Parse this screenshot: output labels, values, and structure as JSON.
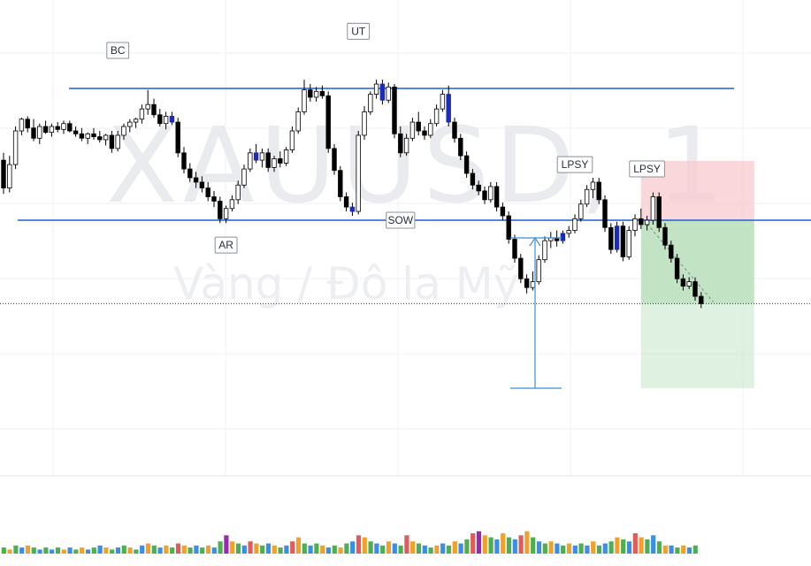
{
  "chart_data": {
    "type": "candlestick",
    "symbol": "XAUUSD, 1",
    "description": "Vàng / Đô la Mỹ",
    "grid": true,
    "colors": {
      "up_body": "#ffffff",
      "down_body": "#000000",
      "wick": "#000000",
      "highlight_body": "#1c2bb8",
      "horizontal_line": "#1e5fd6",
      "measure_line": "#3d8fd1",
      "stop_zone": "#f7c9cf",
      "target_zone": "#bfe3c2",
      "volume_colors": [
        "#e25a5a",
        "#f0a12b",
        "#4caf50",
        "#3a8ee6",
        "#9c27b0"
      ]
    },
    "price_levels": {
      "resistance": 2033.0,
      "support": 2024.0,
      "current": 2018.3
    },
    "candles": [
      {
        "o": 2028.1,
        "h": 2028.6,
        "l": 2025.8,
        "c": 2026.2
      },
      {
        "o": 2026.2,
        "h": 2028.4,
        "l": 2025.9,
        "c": 2027.8
      },
      {
        "o": 2027.8,
        "h": 2030.4,
        "l": 2027.5,
        "c": 2030.1
      },
      {
        "o": 2030.1,
        "h": 2031.0,
        "l": 2029.8,
        "c": 2030.9
      },
      {
        "o": 2030.9,
        "h": 2031.1,
        "l": 2030.0,
        "c": 2030.3
      },
      {
        "o": 2030.3,
        "h": 2030.9,
        "l": 2029.4,
        "c": 2029.6
      },
      {
        "o": 2029.6,
        "h": 2030.6,
        "l": 2029.2,
        "c": 2030.4
      },
      {
        "o": 2030.4,
        "h": 2030.8,
        "l": 2029.9,
        "c": 2030.0
      },
      {
        "o": 2030.0,
        "h": 2030.6,
        "l": 2029.7,
        "c": 2030.4
      },
      {
        "o": 2030.4,
        "h": 2030.7,
        "l": 2030.0,
        "c": 2030.2
      },
      {
        "o": 2030.2,
        "h": 2030.8,
        "l": 2029.9,
        "c": 2030.6
      },
      {
        "o": 2030.6,
        "h": 2030.8,
        "l": 2030.0,
        "c": 2030.1
      },
      {
        "o": 2030.1,
        "h": 2030.4,
        "l": 2029.7,
        "c": 2029.9
      },
      {
        "o": 2029.9,
        "h": 2030.3,
        "l": 2029.4,
        "c": 2029.6
      },
      {
        "o": 2029.6,
        "h": 2030.0,
        "l": 2029.2,
        "c": 2029.9
      },
      {
        "o": 2029.9,
        "h": 2030.3,
        "l": 2029.5,
        "c": 2029.7
      },
      {
        "o": 2029.7,
        "h": 2030.1,
        "l": 2029.3,
        "c": 2029.5
      },
      {
        "o": 2029.5,
        "h": 2029.9,
        "l": 2029.1,
        "c": 2029.8
      },
      {
        "o": 2029.8,
        "h": 2030.1,
        "l": 2028.6,
        "c": 2028.9
      },
      {
        "o": 2028.9,
        "h": 2030.1,
        "l": 2028.7,
        "c": 2029.8
      },
      {
        "o": 2029.8,
        "h": 2030.6,
        "l": 2029.5,
        "c": 2030.4
      },
      {
        "o": 2030.4,
        "h": 2030.9,
        "l": 2030.0,
        "c": 2030.7
      },
      {
        "o": 2030.7,
        "h": 2031.0,
        "l": 2030.3,
        "c": 2030.9
      },
      {
        "o": 2030.9,
        "h": 2031.9,
        "l": 2030.6,
        "c": 2031.6
      },
      {
        "o": 2031.6,
        "h": 2032.9,
        "l": 2031.2,
        "c": 2031.9
      },
      {
        "o": 2031.9,
        "h": 2032.3,
        "l": 2031.0,
        "c": 2031.2
      },
      {
        "o": 2031.2,
        "h": 2031.6,
        "l": 2030.4,
        "c": 2030.6
      },
      {
        "o": 2030.6,
        "h": 2031.4,
        "l": 2030.2,
        "c": 2031.1
      },
      {
        "o": 2031.1,
        "h": 2031.4,
        "l": 2030.5,
        "c": 2030.7,
        "hl": true
      },
      {
        "o": 2030.7,
        "h": 2031.0,
        "l": 2028.3,
        "c": 2028.6
      },
      {
        "o": 2028.6,
        "h": 2029.0,
        "l": 2027.2,
        "c": 2027.5
      },
      {
        "o": 2027.5,
        "h": 2027.9,
        "l": 2026.6,
        "c": 2026.9
      },
      {
        "o": 2026.9,
        "h": 2027.3,
        "l": 2026.2,
        "c": 2026.6
      },
      {
        "o": 2026.6,
        "h": 2027.0,
        "l": 2025.9,
        "c": 2026.2
      },
      {
        "o": 2026.2,
        "h": 2026.6,
        "l": 2025.3,
        "c": 2025.6
      },
      {
        "o": 2025.6,
        "h": 2026.0,
        "l": 2024.9,
        "c": 2025.3
      },
      {
        "o": 2025.3,
        "h": 2025.6,
        "l": 2023.8,
        "c": 2024.1
      },
      {
        "o": 2024.1,
        "h": 2025.0,
        "l": 2023.8,
        "c": 2024.8
      },
      {
        "o": 2024.8,
        "h": 2025.7,
        "l": 2024.6,
        "c": 2025.4
      },
      {
        "o": 2025.4,
        "h": 2026.7,
        "l": 2025.1,
        "c": 2026.4
      },
      {
        "o": 2026.4,
        "h": 2027.8,
        "l": 2026.2,
        "c": 2027.5
      },
      {
        "o": 2027.5,
        "h": 2028.9,
        "l": 2027.3,
        "c": 2028.6
      },
      {
        "o": 2028.6,
        "h": 2029.2,
        "l": 2027.9,
        "c": 2028.1,
        "hl": true
      },
      {
        "o": 2028.1,
        "h": 2028.9,
        "l": 2027.6,
        "c": 2028.6
      },
      {
        "o": 2028.6,
        "h": 2028.9,
        "l": 2027.3,
        "c": 2027.6
      },
      {
        "o": 2027.6,
        "h": 2028.4,
        "l": 2027.3,
        "c": 2028.2
      },
      {
        "o": 2028.2,
        "h": 2028.7,
        "l": 2027.6,
        "c": 2027.9
      },
      {
        "o": 2027.9,
        "h": 2029.0,
        "l": 2027.7,
        "c": 2028.8
      },
      {
        "o": 2028.8,
        "h": 2030.4,
        "l": 2028.6,
        "c": 2030.1
      },
      {
        "o": 2030.1,
        "h": 2031.7,
        "l": 2029.9,
        "c": 2031.4
      },
      {
        "o": 2031.4,
        "h": 2033.6,
        "l": 2031.2,
        "c": 2032.9
      },
      {
        "o": 2032.9,
        "h": 2033.3,
        "l": 2032.1,
        "c": 2032.4
      },
      {
        "o": 2032.4,
        "h": 2033.1,
        "l": 2032.1,
        "c": 2032.8
      },
      {
        "o": 2032.8,
        "h": 2033.2,
        "l": 2032.3,
        "c": 2032.5
      },
      {
        "o": 2032.5,
        "h": 2032.8,
        "l": 2028.6,
        "c": 2028.9
      },
      {
        "o": 2028.9,
        "h": 2029.2,
        "l": 2027.1,
        "c": 2027.4
      },
      {
        "o": 2027.4,
        "h": 2027.7,
        "l": 2025.3,
        "c": 2025.6
      },
      {
        "o": 2025.6,
        "h": 2025.9,
        "l": 2024.6,
        "c": 2024.9
      },
      {
        "o": 2024.9,
        "h": 2025.2,
        "l": 2024.3,
        "c": 2024.6,
        "hl": true
      },
      {
        "o": 2024.6,
        "h": 2030.1,
        "l": 2024.4,
        "c": 2029.8
      },
      {
        "o": 2029.8,
        "h": 2031.8,
        "l": 2029.5,
        "c": 2031.4
      },
      {
        "o": 2031.4,
        "h": 2032.8,
        "l": 2031.2,
        "c": 2032.6
      },
      {
        "o": 2032.6,
        "h": 2033.6,
        "l": 2032.3,
        "c": 2033.3
      },
      {
        "o": 2033.3,
        "h": 2033.6,
        "l": 2031.9,
        "c": 2032.2,
        "hl": true
      },
      {
        "o": 2032.2,
        "h": 2033.4,
        "l": 2032.0,
        "c": 2033.1
      },
      {
        "o": 2033.1,
        "h": 2033.3,
        "l": 2029.6,
        "c": 2029.9
      },
      {
        "o": 2029.9,
        "h": 2030.4,
        "l": 2028.3,
        "c": 2028.6
      },
      {
        "o": 2028.6,
        "h": 2029.9,
        "l": 2028.4,
        "c": 2029.6
      },
      {
        "o": 2029.6,
        "h": 2031.0,
        "l": 2029.4,
        "c": 2030.7
      },
      {
        "o": 2030.7,
        "h": 2031.4,
        "l": 2029.8,
        "c": 2030.1
      },
      {
        "o": 2030.1,
        "h": 2030.4,
        "l": 2029.5,
        "c": 2029.8
      },
      {
        "o": 2029.8,
        "h": 2030.9,
        "l": 2029.6,
        "c": 2030.6
      },
      {
        "o": 2030.6,
        "h": 2031.9,
        "l": 2030.4,
        "c": 2031.6
      },
      {
        "o": 2031.6,
        "h": 2032.9,
        "l": 2031.4,
        "c": 2032.6
      },
      {
        "o": 2032.6,
        "h": 2033.2,
        "l": 2030.4,
        "c": 2030.7,
        "hl": true
      },
      {
        "o": 2030.7,
        "h": 2031.0,
        "l": 2029.3,
        "c": 2029.6
      },
      {
        "o": 2029.6,
        "h": 2029.9,
        "l": 2028.1,
        "c": 2028.4
      },
      {
        "o": 2028.4,
        "h": 2028.7,
        "l": 2026.9,
        "c": 2027.2
      },
      {
        "o": 2027.2,
        "h": 2027.5,
        "l": 2026.1,
        "c": 2026.4
      },
      {
        "o": 2026.4,
        "h": 2026.7,
        "l": 2025.7,
        "c": 2026.0
      },
      {
        "o": 2026.0,
        "h": 2026.3,
        "l": 2025.1,
        "c": 2025.4
      },
      {
        "o": 2025.4,
        "h": 2026.6,
        "l": 2025.2,
        "c": 2026.3
      },
      {
        "o": 2026.3,
        "h": 2026.6,
        "l": 2024.6,
        "c": 2024.9
      },
      {
        "o": 2024.9,
        "h": 2025.2,
        "l": 2024.0,
        "c": 2024.3
      },
      {
        "o": 2024.3,
        "h": 2024.6,
        "l": 2022.4,
        "c": 2022.7
      },
      {
        "o": 2022.7,
        "h": 2023.0,
        "l": 2021.1,
        "c": 2021.4
      },
      {
        "o": 2021.4,
        "h": 2021.7,
        "l": 2019.7,
        "c": 2020.0
      },
      {
        "o": 2020.0,
        "h": 2020.3,
        "l": 2019.0,
        "c": 2019.4
      },
      {
        "o": 2019.4,
        "h": 2020.5,
        "l": 2019.2,
        "c": 2019.8
      },
      {
        "o": 2019.8,
        "h": 2021.6,
        "l": 2019.6,
        "c": 2021.3
      },
      {
        "o": 2021.3,
        "h": 2022.9,
        "l": 2021.1,
        "c": 2022.6
      },
      {
        "o": 2022.6,
        "h": 2023.2,
        "l": 2022.1,
        "c": 2022.8
      },
      {
        "o": 2022.8,
        "h": 2023.3,
        "l": 2022.2,
        "c": 2022.6
      },
      {
        "o": 2022.6,
        "h": 2023.3,
        "l": 2022.4,
        "c": 2023.1,
        "hl": true
      },
      {
        "o": 2023.1,
        "h": 2023.6,
        "l": 2022.8,
        "c": 2023.3
      },
      {
        "o": 2023.3,
        "h": 2024.4,
        "l": 2023.1,
        "c": 2024.1
      },
      {
        "o": 2024.1,
        "h": 2025.4,
        "l": 2023.9,
        "c": 2025.1
      },
      {
        "o": 2025.1,
        "h": 2026.4,
        "l": 2024.9,
        "c": 2026.1
      },
      {
        "o": 2026.1,
        "h": 2026.9,
        "l": 2025.5,
        "c": 2026.6
      },
      {
        "o": 2026.6,
        "h": 2026.9,
        "l": 2025.1,
        "c": 2025.4
      },
      {
        "o": 2025.4,
        "h": 2025.7,
        "l": 2023.2,
        "c": 2023.5
      },
      {
        "o": 2023.5,
        "h": 2023.8,
        "l": 2021.7,
        "c": 2022.0
      },
      {
        "o": 2022.0,
        "h": 2023.9,
        "l": 2021.8,
        "c": 2023.6,
        "hl": true
      },
      {
        "o": 2023.6,
        "h": 2023.9,
        "l": 2021.2,
        "c": 2021.5
      },
      {
        "o": 2021.5,
        "h": 2023.6,
        "l": 2021.3,
        "c": 2023.3
      },
      {
        "o": 2023.3,
        "h": 2024.4,
        "l": 2022.9,
        "c": 2024.1
      },
      {
        "o": 2024.1,
        "h": 2024.8,
        "l": 2023.4,
        "c": 2023.7
      },
      {
        "o": 2023.7,
        "h": 2024.3,
        "l": 2023.3,
        "c": 2024.0
      },
      {
        "o": 2024.0,
        "h": 2025.9,
        "l": 2023.7,
        "c": 2025.6
      },
      {
        "o": 2025.6,
        "h": 2025.9,
        "l": 2023.2,
        "c": 2023.5
      },
      {
        "o": 2023.5,
        "h": 2023.8,
        "l": 2022.0,
        "c": 2022.3
      },
      {
        "o": 2022.3,
        "h": 2022.6,
        "l": 2021.1,
        "c": 2021.4
      },
      {
        "o": 2021.4,
        "h": 2021.7,
        "l": 2019.7,
        "c": 2020.0
      },
      {
        "o": 2020.0,
        "h": 2020.3,
        "l": 2019.2,
        "c": 2019.5
      },
      {
        "o": 2019.5,
        "h": 2020.1,
        "l": 2019.3,
        "c": 2019.8
      },
      {
        "o": 2019.8,
        "h": 2020.1,
        "l": 2018.5,
        "c": 2018.8
      },
      {
        "o": 2018.8,
        "h": 2019.1,
        "l": 2018.0,
        "c": 2018.3
      }
    ],
    "volumes": [
      [
        3,
        "#4caf50"
      ],
      [
        2,
        "#f0a12b"
      ],
      [
        4,
        "#4caf50"
      ],
      [
        3,
        "#3a8ee6"
      ],
      [
        4,
        "#f0a12b"
      ],
      [
        3,
        "#4caf50"
      ],
      [
        2,
        "#3a8ee6"
      ],
      [
        3,
        "#4caf50"
      ],
      [
        2,
        "#3a8ee6"
      ],
      [
        3,
        "#4caf50"
      ],
      [
        2,
        "#f0a12b"
      ],
      [
        3,
        "#3a8ee6"
      ],
      [
        2,
        "#4caf50"
      ],
      [
        3,
        "#f0a12b"
      ],
      [
        2,
        "#3a8ee6"
      ],
      [
        3,
        "#4caf50"
      ],
      [
        4,
        "#3a8ee6"
      ],
      [
        3,
        "#f0a12b"
      ],
      [
        2,
        "#4caf50"
      ],
      [
        3,
        "#3a8ee6"
      ],
      [
        4,
        "#4caf50"
      ],
      [
        3,
        "#f0a12b"
      ],
      [
        2,
        "#4caf50"
      ],
      [
        4,
        "#3a8ee6"
      ],
      [
        5,
        "#f0a12b"
      ],
      [
        4,
        "#4caf50"
      ],
      [
        3,
        "#3a8ee6"
      ],
      [
        4,
        "#f0a12b"
      ],
      [
        3,
        "#4caf50"
      ],
      [
        5,
        "#e25a5a"
      ],
      [
        4,
        "#f0a12b"
      ],
      [
        3,
        "#4caf50"
      ],
      [
        4,
        "#3a8ee6"
      ],
      [
        3,
        "#4caf50"
      ],
      [
        4,
        "#f0a12b"
      ],
      [
        3,
        "#3a8ee6"
      ],
      [
        6,
        "#4caf50"
      ],
      [
        9,
        "#9c27b0"
      ],
      [
        6,
        "#f0a12b"
      ],
      [
        5,
        "#4caf50"
      ],
      [
        4,
        "#3a8ee6"
      ],
      [
        6,
        "#e25a5a"
      ],
      [
        5,
        "#f0a12b"
      ],
      [
        4,
        "#4caf50"
      ],
      [
        5,
        "#3a8ee6"
      ],
      [
        4,
        "#f0a12b"
      ],
      [
        3,
        "#4caf50"
      ],
      [
        4,
        "#3a8ee6"
      ],
      [
        6,
        "#e25a5a"
      ],
      [
        8,
        "#f0a12b"
      ],
      [
        5,
        "#4caf50"
      ],
      [
        4,
        "#3a8ee6"
      ],
      [
        5,
        "#4caf50"
      ],
      [
        4,
        "#f0a12b"
      ],
      [
        3,
        "#3a8ee6"
      ],
      [
        4,
        "#4caf50"
      ],
      [
        3,
        "#f0a12b"
      ],
      [
        5,
        "#4caf50"
      ],
      [
        6,
        "#3a8ee6"
      ],
      [
        9,
        "#e25a5a"
      ],
      [
        8,
        "#f0a12b"
      ],
      [
        6,
        "#4caf50"
      ],
      [
        5,
        "#3a8ee6"
      ],
      [
        4,
        "#4caf50"
      ],
      [
        6,
        "#f0a12b"
      ],
      [
        5,
        "#3a8ee6"
      ],
      [
        4,
        "#4caf50"
      ],
      [
        9,
        "#e25a5a"
      ],
      [
        6,
        "#f0a12b"
      ],
      [
        5,
        "#4caf50"
      ],
      [
        4,
        "#3a8ee6"
      ],
      [
        3,
        "#4caf50"
      ],
      [
        4,
        "#f0a12b"
      ],
      [
        5,
        "#3a8ee6"
      ],
      [
        4,
        "#4caf50"
      ],
      [
        6,
        "#f0a12b"
      ],
      [
        5,
        "#3a8ee6"
      ],
      [
        7,
        "#4caf50"
      ],
      [
        10,
        "#e25a5a"
      ],
      [
        11,
        "#9c27b0"
      ],
      [
        9,
        "#f0a12b"
      ],
      [
        8,
        "#4caf50"
      ],
      [
        7,
        "#3a8ee6"
      ],
      [
        10,
        "#f0a12b"
      ],
      [
        8,
        "#4caf50"
      ],
      [
        7,
        "#3a8ee6"
      ],
      [
        9,
        "#e25a5a"
      ],
      [
        11,
        "#f0a12b"
      ],
      [
        8,
        "#4caf50"
      ],
      [
        6,
        "#3a8ee6"
      ],
      [
        5,
        "#4caf50"
      ],
      [
        6,
        "#f0a12b"
      ],
      [
        5,
        "#3a8ee6"
      ],
      [
        4,
        "#4caf50"
      ],
      [
        5,
        "#f0a12b"
      ],
      [
        4,
        "#3a8ee6"
      ],
      [
        5,
        "#4caf50"
      ],
      [
        4,
        "#3a8ee6"
      ],
      [
        6,
        "#f0a12b"
      ],
      [
        4,
        "#4caf50"
      ],
      [
        5,
        "#3a8ee6"
      ],
      [
        6,
        "#4caf50"
      ],
      [
        8,
        "#f0a12b"
      ],
      [
        7,
        "#4caf50"
      ],
      [
        6,
        "#3a8ee6"
      ],
      [
        10,
        "#e25a5a"
      ],
      [
        8,
        "#f0a12b"
      ],
      [
        7,
        "#4caf50"
      ],
      [
        9,
        "#3a8ee6"
      ],
      [
        6,
        "#4caf50"
      ],
      [
        4,
        "#f0a12b"
      ],
      [
        4,
        "#3a8ee6"
      ],
      [
        3,
        "#4caf50"
      ],
      [
        4,
        "#f0a12b"
      ],
      [
        3,
        "#3a8ee6"
      ],
      [
        4,
        "#4caf50"
      ]
    ],
    "annotations": [
      {
        "label": "BC",
        "bar": 19,
        "price": 2035.6
      },
      {
        "label": "AR",
        "bar": 37,
        "price": 2022.3
      },
      {
        "label": "UT",
        "bar": 59,
        "price": 2036.9
      },
      {
        "label": "SOW",
        "bar": 66,
        "price": 2024.0
      },
      {
        "label": "LPSY",
        "bar": 95,
        "price": 2027.8
      },
      {
        "label": "LPSY",
        "bar": 107,
        "price": 2027.5
      }
    ]
  }
}
